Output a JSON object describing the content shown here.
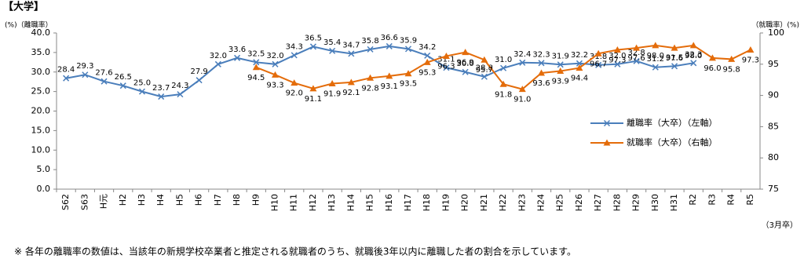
{
  "chart_data": {
    "type": "line",
    "title": "【大学】",
    "y_label": "(%)（離職率）",
    "y2_label": "（就職率）(%)",
    "x_note": "（3月卒）",
    "footnote": "※ 各年の離職率の数値は、当該年の新規学校卒業者と推定される就職者のうち、就職後3年以内に離職した者の割合を示しています。",
    "categories": [
      "S62",
      "S63",
      "H元",
      "H2",
      "H3",
      "H4",
      "H5",
      "H6",
      "H7",
      "H8",
      "H9",
      "H10",
      "H11",
      "H12",
      "H13",
      "H14",
      "H15",
      "H16",
      "H17",
      "H18",
      "H19",
      "H20",
      "H21",
      "H22",
      "H23",
      "H24",
      "H25",
      "H26",
      "H27",
      "H28",
      "H29",
      "H30",
      "H31",
      "R2",
      "R3",
      "R4",
      "R5"
    ],
    "ylim": [
      0,
      40
    ],
    "yticks": [
      {
        "value": 0,
        "label": "0.0"
      },
      {
        "value": 5,
        "label": "5.0"
      },
      {
        "value": 10,
        "label": "10.0"
      },
      {
        "value": 15,
        "label": "15.0"
      },
      {
        "value": 20,
        "label": "20.0"
      },
      {
        "value": 25,
        "label": "25.0"
      },
      {
        "value": 30,
        "label": "30.0"
      },
      {
        "value": 35,
        "label": "35.0"
      },
      {
        "value": 40,
        "label": "40.0"
      }
    ],
    "y2lim": [
      75,
      100
    ],
    "y2ticks": [
      75,
      80,
      85,
      90,
      95,
      100
    ],
    "series": [
      {
        "name": "離職率（大卒）（左軸）",
        "color": "#4a7ebb",
        "marker": "x",
        "values": [
          28.4,
          29.3,
          27.6,
          26.5,
          25.0,
          23.7,
          24.3,
          27.9,
          32.0,
          33.6,
          32.5,
          32.0,
          34.3,
          36.5,
          35.4,
          34.7,
          35.8,
          36.6,
          35.9,
          34.2,
          31.1,
          30.0,
          28.8,
          31.0,
          32.4,
          32.3,
          31.9,
          32.2,
          31.8,
          32.0,
          32.8,
          31.2,
          31.5,
          32.3,
          null,
          null,
          null
        ],
        "value_labels": [
          "28.4",
          "29.3",
          "27.6",
          "26.5",
          "25.0",
          "23.7",
          "24.3",
          "27.9",
          "32.0",
          "33.6",
          "32.5",
          "32.0",
          "34.3",
          "36.5",
          "35.4",
          "34.7",
          "35.8",
          "36.6",
          "35.9",
          "34.2",
          "31.1",
          "30.0",
          "28.8",
          "31.0",
          "32.4",
          "32.3",
          "31.9",
          "32.2",
          "31.8",
          "32.0",
          "32.8",
          "31.2",
          "31.5",
          "32.3",
          null,
          null,
          null
        ]
      },
      {
        "name": "就職率（大卒）（右軸）",
        "color": "#e46c0a",
        "marker": "triangle",
        "axis": "y2",
        "values": [
          null,
          null,
          null,
          null,
          null,
          null,
          null,
          null,
          null,
          null,
          94.5,
          93.3,
          92.0,
          91.1,
          91.9,
          92.1,
          92.8,
          93.1,
          93.5,
          95.3,
          96.3,
          96.9,
          95.7,
          91.8,
          91.0,
          93.6,
          93.9,
          94.4,
          96.7,
          97.3,
          97.6,
          98.0,
          97.6,
          98.0,
          96.0,
          95.8,
          97.3
        ],
        "value_labels": [
          null,
          null,
          null,
          null,
          null,
          null,
          null,
          null,
          null,
          null,
          "94.5",
          "93.3",
          "92.0",
          "91.1",
          "91.9",
          "92.1",
          "92.8",
          "93.1",
          "93.5",
          "95.3",
          "96.3",
          "96.9",
          "95.7",
          "91.8",
          "91.0",
          "93.6",
          "93.9",
          "94.4",
          "96.7",
          "97.3",
          "97.6",
          "98.0",
          "97.6",
          "98.0",
          "96.0",
          "95.8",
          "97.3"
        ]
      }
    ]
  }
}
